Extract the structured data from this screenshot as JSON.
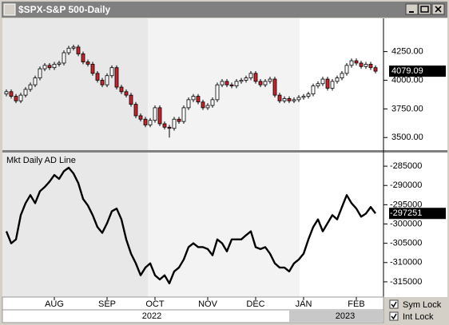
{
  "window": {
    "title": "$SPX-S&P 500-Daily"
  },
  "chart_data": [
    {
      "type": "candlestick",
      "open": [
        3880,
        3900,
        3860,
        3820,
        3870,
        3920,
        3960,
        4020,
        4100,
        4130,
        4110,
        4140,
        4150,
        4240,
        4280,
        4290,
        4230,
        4160,
        4140,
        4060,
        4000,
        3960,
        4040,
        4110,
        3940,
        3900,
        3870,
        3790,
        3690,
        3660,
        3610,
        3650,
        3760,
        3620,
        3590,
        3580,
        3660,
        3640,
        3760,
        3830,
        3860,
        3810,
        3760,
        3780,
        3830,
        3960,
        3990,
        3960,
        3950,
        3990,
        4000,
        4020,
        4060,
        3990,
        3960,
        3990,
        4010,
        3870,
        3820,
        3840,
        3820,
        3830,
        3850,
        3860,
        3880,
        3950,
        3970,
        4010,
        3930,
        3990,
        4020,
        4060,
        4130,
        4170,
        4150,
        4120,
        4140,
        4110
      ],
      "high": [
        3920,
        3920,
        3880,
        3890,
        3940,
        3980,
        4040,
        4120,
        4150,
        4150,
        4160,
        4170,
        4260,
        4300,
        4310,
        4310,
        4250,
        4180,
        4160,
        4080,
        4020,
        4060,
        4130,
        4130,
        3960,
        3920,
        3890,
        3810,
        3710,
        3680,
        3670,
        3780,
        3780,
        3640,
        3610,
        3680,
        3680,
        3780,
        3850,
        3880,
        3880,
        3830,
        3800,
        3850,
        3980,
        4010,
        4010,
        3980,
        4010,
        4020,
        4040,
        4080,
        4080,
        4010,
        4010,
        4030,
        4030,
        3890,
        3860,
        3860,
        3850,
        3870,
        3880,
        3900,
        3970,
        3990,
        4030,
        4030,
        4010,
        4040,
        4080,
        4150,
        4190,
        4190,
        4170,
        4160,
        4160,
        4130
      ],
      "low": [
        3860,
        3840,
        3800,
        3800,
        3850,
        3900,
        3940,
        4000,
        4080,
        4090,
        4090,
        4120,
        4130,
        4220,
        4260,
        4210,
        4140,
        4120,
        4040,
        3980,
        3940,
        3940,
        4020,
        3920,
        3880,
        3850,
        3770,
        3670,
        3640,
        3590,
        3590,
        3630,
        3600,
        3570,
        3500,
        3560,
        3620,
        3620,
        3740,
        3810,
        3790,
        3740,
        3740,
        3760,
        3810,
        3940,
        3940,
        3930,
        3930,
        3970,
        3980,
        4000,
        3970,
        3940,
        3940,
        3970,
        3850,
        3800,
        3800,
        3800,
        3800,
        3810,
        3830,
        3840,
        3860,
        3930,
        3950,
        3910,
        3910,
        3970,
        4000,
        4040,
        4110,
        4130,
        4100,
        4100,
        4090,
        4060
      ],
      "close": [
        3900,
        3860,
        3820,
        3870,
        3920,
        3960,
        4020,
        4100,
        4130,
        4110,
        4140,
        4150,
        4240,
        4280,
        4290,
        4230,
        4160,
        4140,
        4060,
        4000,
        3960,
        4040,
        4110,
        3940,
        3900,
        3870,
        3790,
        3690,
        3660,
        3610,
        3650,
        3760,
        3620,
        3590,
        3580,
        3660,
        3640,
        3760,
        3830,
        3860,
        3810,
        3760,
        3780,
        3830,
        3960,
        3990,
        3960,
        3950,
        3990,
        4000,
        4020,
        4060,
        3990,
        3960,
        3990,
        4010,
        3870,
        3820,
        3840,
        3820,
        3830,
        3850,
        3860,
        3880,
        3950,
        3970,
        4010,
        3930,
        3990,
        4020,
        4060,
        4130,
        4170,
        4150,
        4120,
        4140,
        4110,
        4079.09
      ],
      "up_color": "#ffffff",
      "down_color": "#c8232c",
      "ylim": [
        3390,
        4540
      ],
      "yticks": [
        {
          "value": 4250,
          "label": "4250.00"
        },
        {
          "value": 4000,
          "label": "4000.00"
        },
        {
          "value": 3750,
          "label": "3750.00"
        },
        {
          "value": 3500,
          "label": "3500.00"
        }
      ]
    },
    {
      "type": "line",
      "title": "Mkt Daily AD Line",
      "color": "#000000",
      "values": [
        -301900,
        -305000,
        -304000,
        -297700,
        -294600,
        -292500,
        -294600,
        -291500,
        -290400,
        -289000,
        -287300,
        -288300,
        -286300,
        -285400,
        -286900,
        -289400,
        -293500,
        -295200,
        -297700,
        -300800,
        -302300,
        -299800,
        -296700,
        -296000,
        -298800,
        -304000,
        -307700,
        -310200,
        -313300,
        -311300,
        -310200,
        -313300,
        -314400,
        -313300,
        -315400,
        -312300,
        -311300,
        -309200,
        -306000,
        -305000,
        -306000,
        -306000,
        -306500,
        -308100,
        -304000,
        -305000,
        -307100,
        -304000,
        -304000,
        -304000,
        -302900,
        -301900,
        -306000,
        -306500,
        -306000,
        -307700,
        -310200,
        -311300,
        -311300,
        -312300,
        -310200,
        -309200,
        -307700,
        -304000,
        -300800,
        -298800,
        -301900,
        -299800,
        -297700,
        -298800,
        -295600,
        -292500,
        -294600,
        -296000,
        -298100,
        -297300,
        -295600,
        -297251
      ],
      "ylim": [
        -318950,
        -281460
      ],
      "yticks": [
        -285000,
        -290000,
        -295000,
        -300000,
        -305000,
        -310000,
        -315000
      ],
      "xticks": [
        {
          "value": 10,
          "label": "AUG"
        },
        {
          "value": 21,
          "label": "SEP"
        },
        {
          "value": 31,
          "label": "OCT"
        },
        {
          "value": 42,
          "label": "NOV"
        },
        {
          "value": 52,
          "label": "DEC"
        },
        {
          "value": 62,
          "label": "JAN"
        },
        {
          "value": 73,
          "label": "FEB"
        }
      ],
      "years": [
        "2022",
        "2023"
      ]
    }
  ],
  "controls": {
    "sym_lock": "Sym Lock",
    "int_lock": "Int Lock"
  }
}
